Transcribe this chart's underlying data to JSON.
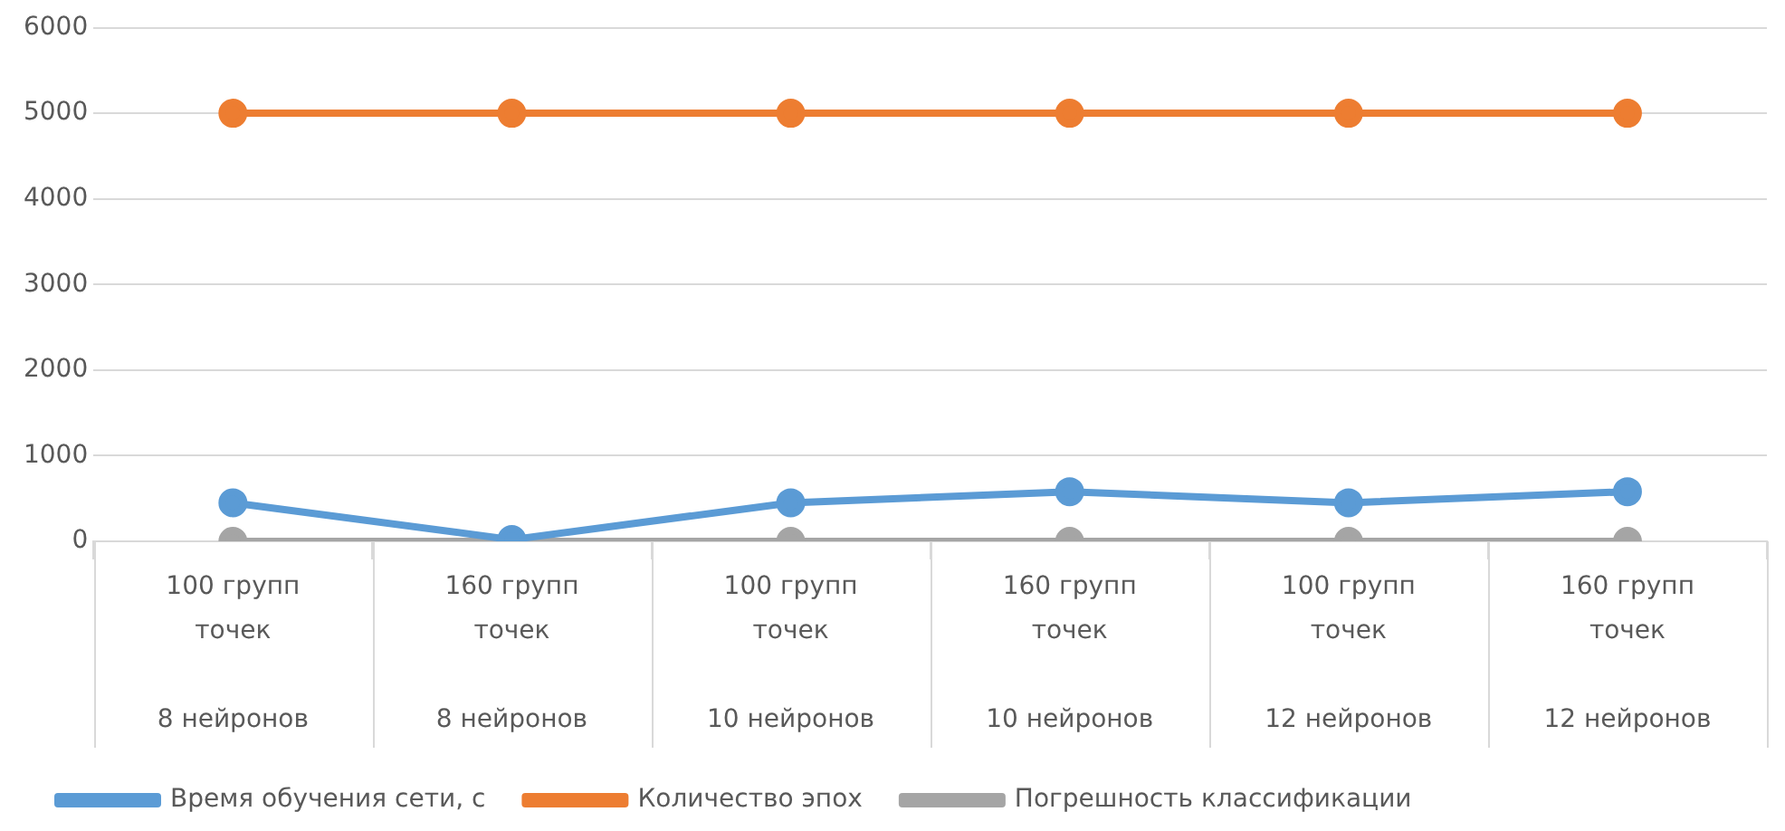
{
  "chart_data": {
    "type": "line",
    "categories": [
      "100 групп точек\n8 нейронов",
      "160 групп точек\n8 нейронов",
      "100 групп точек\n10 нейронов",
      "160 групп точек\n10 нейронов",
      "100 групп точек\n12 нейронов",
      "160 групп точек\n12 нейронов"
    ],
    "series": [
      {
        "name": "Время обучения сети, с",
        "color": "#5b9bd5",
        "values": [
          450,
          20,
          450,
          580,
          450,
          580
        ]
      },
      {
        "name": "Количество эпох",
        "color": "#ed7d31",
        "values": [
          5000,
          5000,
          5000,
          5000,
          5000,
          5000
        ]
      },
      {
        "name": "Погрешность классификации",
        "color": "#a5a5a5",
        "values": [
          0,
          0,
          0,
          0,
          0,
          0
        ]
      }
    ],
    "ylim": [
      0,
      6000
    ],
    "yticks": [
      0,
      1000,
      2000,
      3000,
      4000,
      5000,
      6000
    ],
    "grid": "y",
    "legend": "bottom",
    "marker": "circle",
    "line_style": "solid"
  }
}
